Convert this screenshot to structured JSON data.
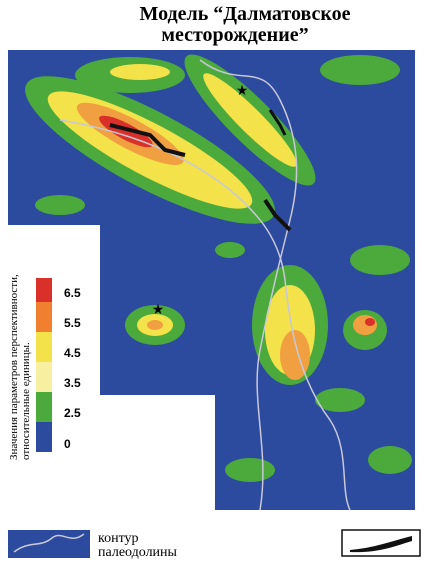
{
  "title": [
    "Модель “Далматовское",
    "месторождение”"
  ],
  "legend": {
    "axis_label": [
      "Значения параметров перспективности,",
      "относительные единицы."
    ],
    "levels": [
      6.5,
      5.5,
      4.5,
      3.5,
      2.5,
      0
    ]
  },
  "key": {
    "label": [
      "контур",
      "палеодолины"
    ]
  }
}
